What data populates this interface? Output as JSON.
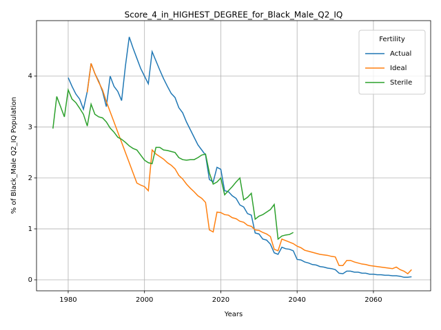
{
  "chart_data": {
    "type": "line",
    "title": "Score_4_in_HIGHEST_DEGREE_for_Black_Male_Q2_IQ",
    "x_label": "Years",
    "y_label": "% of Black_Male Q2_IQ Population",
    "x": [
      1976,
      1977,
      1978,
      1979,
      1980,
      1981,
      1982,
      1983,
      1984,
      1985,
      1986,
      1987,
      1988,
      1989,
      1990,
      1991,
      1992,
      1993,
      1994,
      1995,
      1996,
      1997,
      1998,
      1999,
      2000,
      2001,
      2002,
      2003,
      2004,
      2005,
      2006,
      2007,
      2008,
      2009,
      2010,
      2011,
      2012,
      2013,
      2014,
      2015,
      2016,
      2017,
      2018,
      2019,
      2020,
      2021,
      2022,
      2023,
      2024,
      2025,
      2026,
      2027,
      2028,
      2029,
      2030,
      2031,
      2032,
      2033,
      2034,
      2035,
      2036,
      2037,
      2038,
      2039,
      2040,
      2041,
      2042,
      2043,
      2044,
      2045,
      2046,
      2047,
      2048,
      2049,
      2050,
      2051,
      2052,
      2053,
      2054,
      2055,
      2056,
      2057,
      2058,
      2059,
      2060,
      2061,
      2062,
      2063,
      2064,
      2065,
      2066,
      2067,
      2068,
      2069,
      2070
    ],
    "series": [
      {
        "name": "Actual",
        "color": "#1f77b4",
        "values": [
          null,
          null,
          null,
          null,
          3.97,
          3.8,
          3.65,
          3.55,
          3.35,
          3.7,
          4.25,
          4.05,
          3.9,
          3.7,
          3.4,
          4.0,
          3.8,
          3.7,
          3.52,
          4.2,
          4.77,
          4.55,
          4.35,
          4.15,
          4.0,
          3.85,
          4.48,
          4.3,
          4.12,
          3.95,
          3.8,
          3.66,
          3.58,
          3.38,
          3.28,
          3.1,
          2.95,
          2.8,
          2.65,
          2.55,
          2.45,
          1.97,
          1.92,
          2.21,
          2.17,
          1.75,
          1.73,
          1.65,
          1.6,
          1.47,
          1.43,
          1.3,
          1.27,
          0.92,
          0.9,
          0.8,
          0.78,
          0.7,
          0.53,
          0.5,
          0.64,
          0.61,
          0.6,
          0.57,
          0.4,
          0.39,
          0.35,
          0.33,
          0.3,
          0.29,
          0.26,
          0.25,
          0.23,
          0.22,
          0.2,
          0.13,
          0.12,
          0.17,
          0.17,
          0.15,
          0.15,
          0.13,
          0.13,
          0.11,
          0.11,
          0.1,
          0.1,
          0.09,
          0.09,
          0.08,
          0.08,
          0.07,
          0.05,
          0.05,
          0.06
        ]
      },
      {
        "name": "Ideal",
        "color": "#ff7f0e",
        "values": [
          null,
          null,
          null,
          null,
          null,
          null,
          null,
          null,
          null,
          3.68,
          4.25,
          4.05,
          3.88,
          3.73,
          3.5,
          3.3,
          3.1,
          2.9,
          2.7,
          2.5,
          2.3,
          2.1,
          1.9,
          1.86,
          1.83,
          1.75,
          2.55,
          2.47,
          2.42,
          2.37,
          2.3,
          2.25,
          2.18,
          2.05,
          1.98,
          1.88,
          1.8,
          1.73,
          1.65,
          1.6,
          1.52,
          0.98,
          0.94,
          1.33,
          1.32,
          1.28,
          1.27,
          1.22,
          1.2,
          1.15,
          1.13,
          1.07,
          1.05,
          0.98,
          0.97,
          0.93,
          0.9,
          0.85,
          0.6,
          0.57,
          0.8,
          0.77,
          0.74,
          0.71,
          0.66,
          0.63,
          0.58,
          0.56,
          0.54,
          0.52,
          0.5,
          0.49,
          0.48,
          0.46,
          0.45,
          0.28,
          0.28,
          0.38,
          0.38,
          0.35,
          0.33,
          0.31,
          0.3,
          0.28,
          0.27,
          0.26,
          0.25,
          0.24,
          0.23,
          0.22,
          0.25,
          0.2,
          0.17,
          0.12,
          0.2
        ]
      },
      {
        "name": "Sterile",
        "color": "#2ca02c",
        "values": [
          2.97,
          3.6,
          3.4,
          3.2,
          3.73,
          3.55,
          3.48,
          3.37,
          3.25,
          3.02,
          3.45,
          3.25,
          3.2,
          3.18,
          3.1,
          2.98,
          2.9,
          2.8,
          2.76,
          2.7,
          2.63,
          2.58,
          2.55,
          2.45,
          2.35,
          2.3,
          2.28,
          2.6,
          2.6,
          2.55,
          2.54,
          2.52,
          2.5,
          2.4,
          2.36,
          2.35,
          2.36,
          2.36,
          2.4,
          2.45,
          2.47,
          2.1,
          1.88,
          1.92,
          2.0,
          1.67,
          1.75,
          1.83,
          1.92,
          2.0,
          1.57,
          1.62,
          1.7,
          1.19,
          1.25,
          1.28,
          1.33,
          1.38,
          1.48,
          0.8,
          0.86,
          0.88,
          0.89,
          0.93,
          null,
          null,
          null,
          null,
          null,
          null,
          null,
          null,
          null,
          null,
          null,
          null,
          null,
          null,
          null,
          null,
          null,
          null,
          null,
          null,
          null,
          null,
          null,
          null,
          null,
          null,
          null,
          null,
          null,
          null,
          null
        ]
      }
    ],
    "xlim": [
      1971.7,
      2075.0
    ],
    "ylim": [
      -0.216,
      5.09
    ],
    "xticks": [
      1980,
      2000,
      2020,
      2040,
      2060
    ],
    "yticks": [
      0,
      1,
      2,
      3,
      4
    ],
    "grid": true,
    "legend_title": "Fertility",
    "legend": "upper right"
  }
}
